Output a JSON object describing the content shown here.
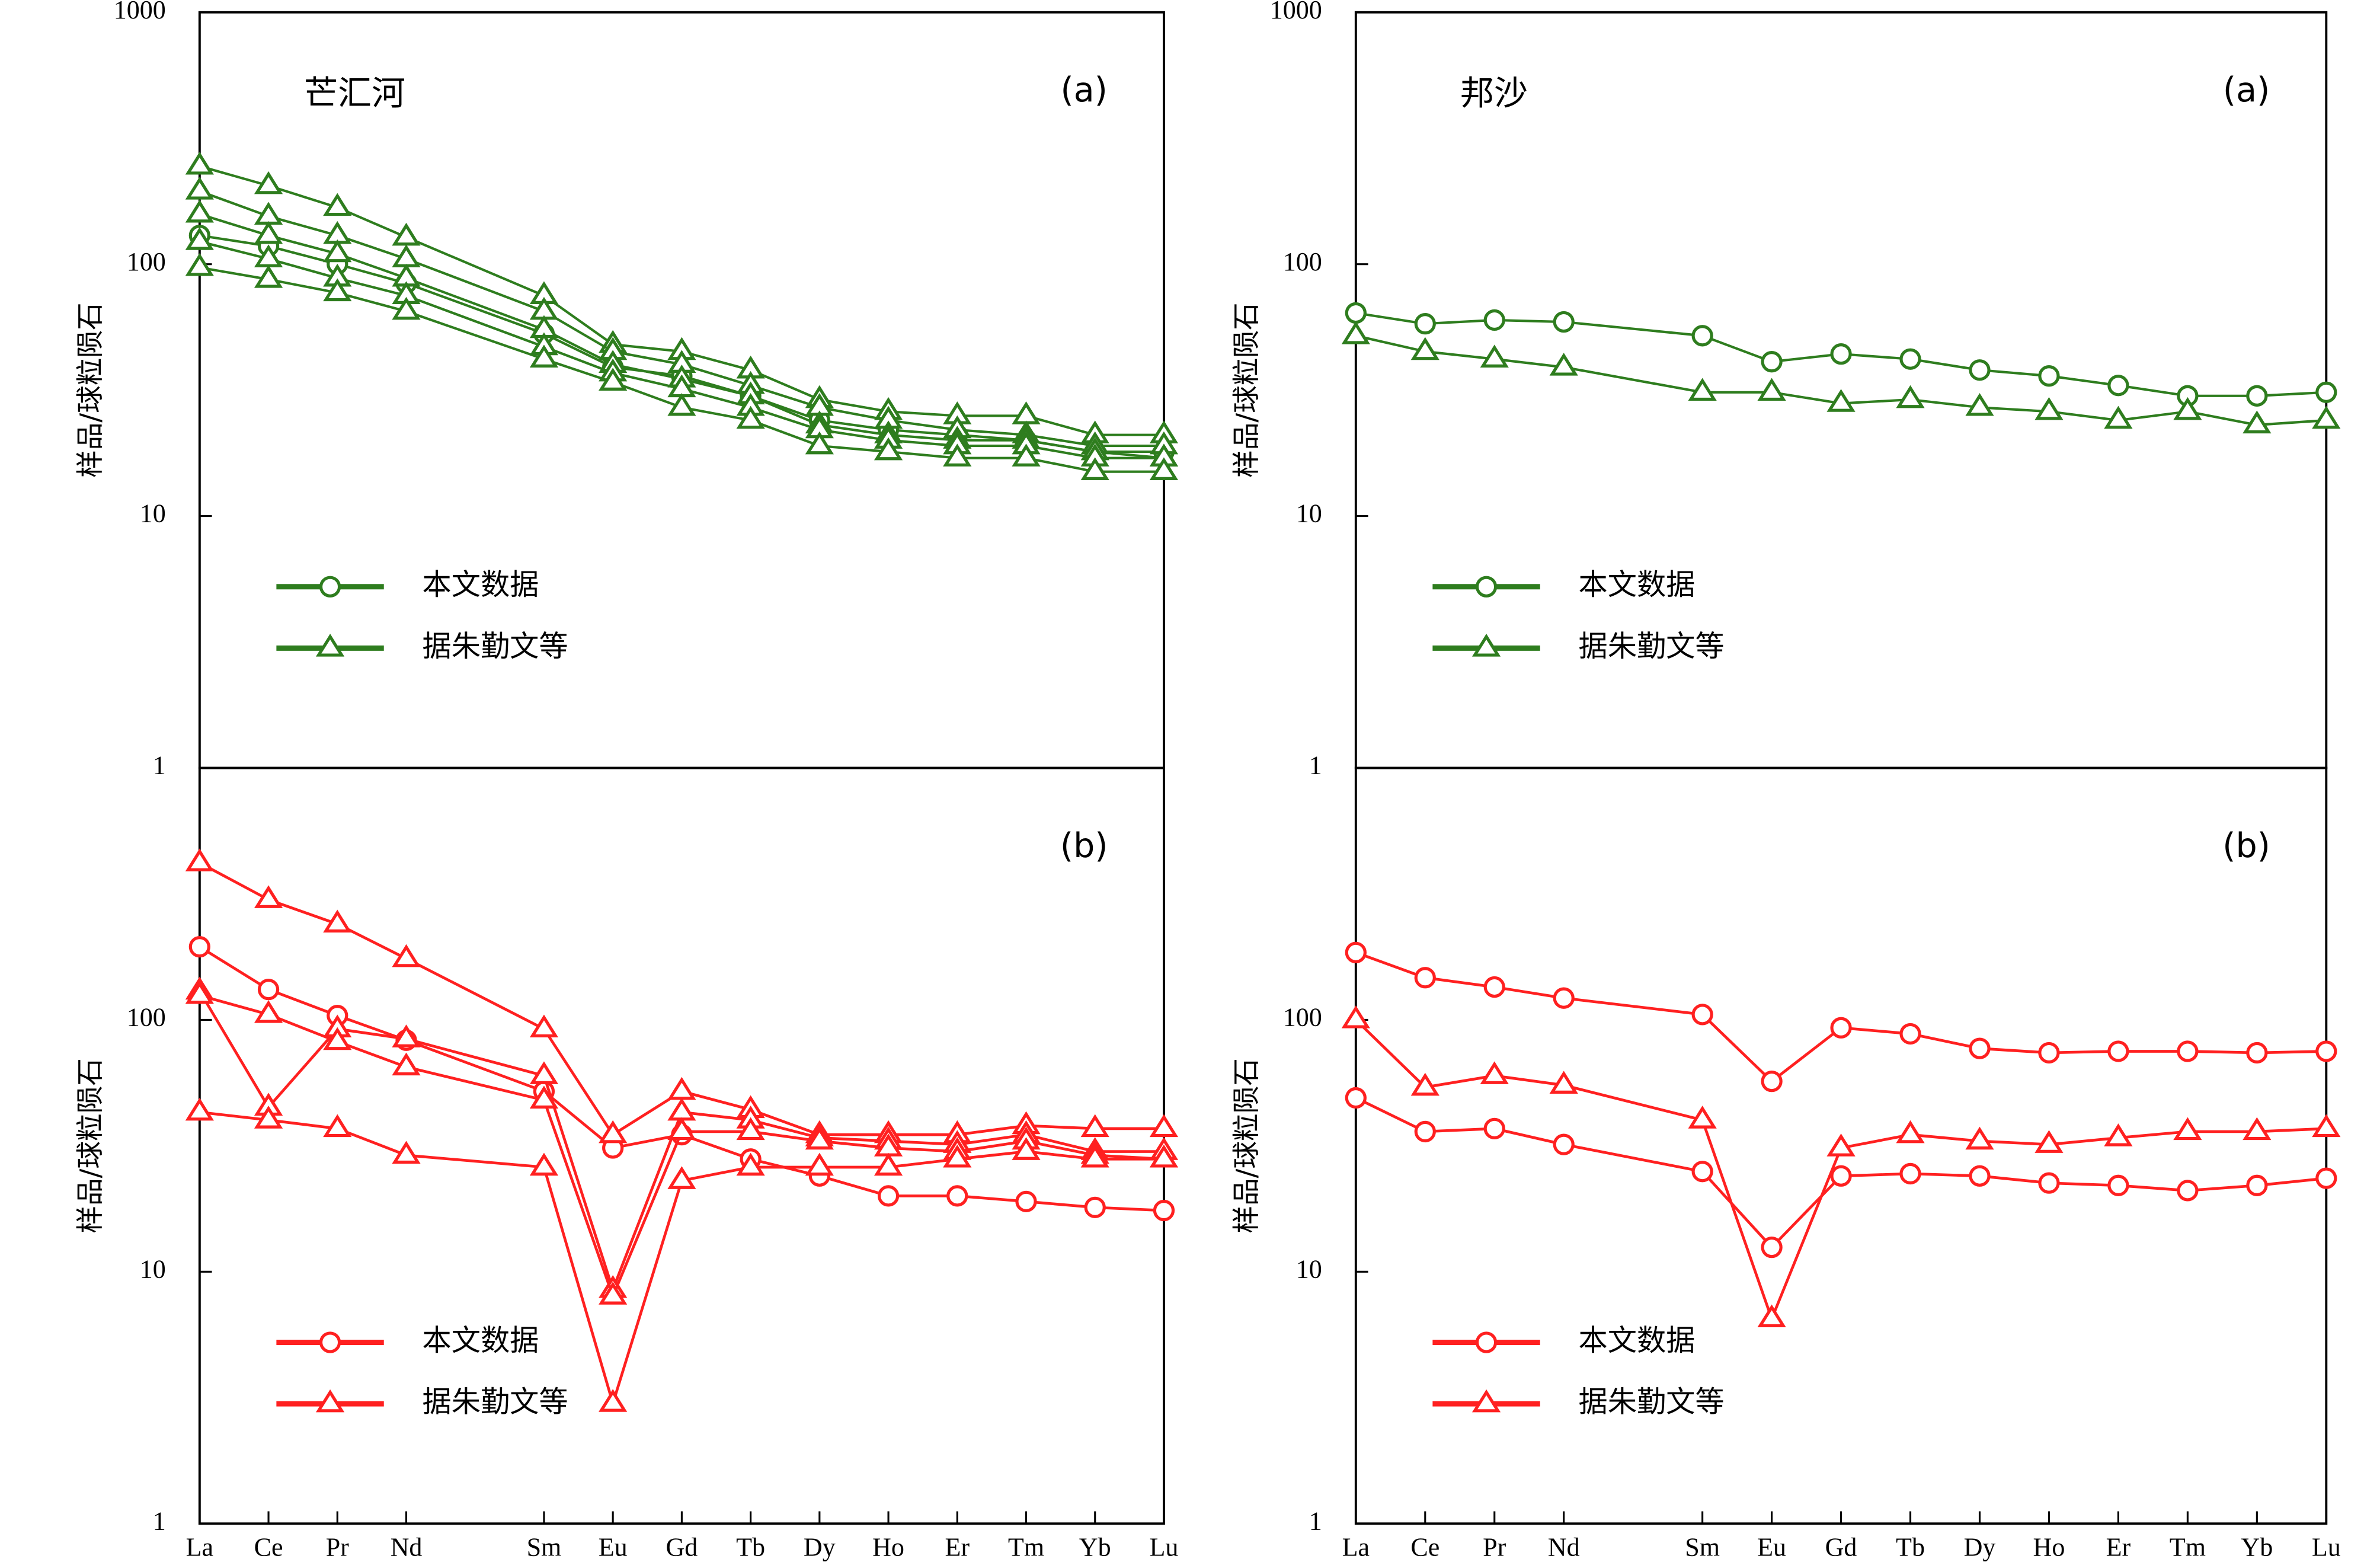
{
  "chart_data": [
    {
      "type": "line",
      "title": "芒汇河",
      "panel_label": "(a)",
      "ylabel": "样品/球粒陨石",
      "x": [
        1,
        2,
        3,
        4,
        6,
        7,
        8,
        9,
        10,
        11,
        12,
        13,
        14,
        15
      ],
      "xlim": [
        1,
        15
      ],
      "ylim": [
        1,
        1000
      ],
      "yticks": [
        1,
        10,
        100,
        1000
      ],
      "log_scale": true,
      "legend": "lower left",
      "series": [
        {
          "name": "本文数据",
          "color": "#2e7d1e",
          "marker": "circle",
          "samples": [
            [
              130,
              118,
              100,
              84,
              53,
              39,
              36,
              30,
              24,
              22,
              21,
              20,
              18,
              18
            ]
          ]
        },
        {
          "name": "据朱勤文等",
          "color": "#2e7d1e",
          "marker": "triangle",
          "samples": [
            [
              245,
              205,
              168,
              128,
              75,
              48,
              45,
              38,
              29,
              26,
              25,
              25,
              21,
              21
            ],
            [
              195,
              155,
              130,
              105,
              65,
              45,
              40,
              33,
              27,
              24,
              22,
              21,
              19,
              19
            ],
            [
              158,
              130,
              110,
              88,
              55,
              40,
              35,
              30,
              23,
              21,
              20,
              20,
              18,
              17
            ],
            [
              123,
              105,
              88,
              75,
              47,
              37,
              32,
              27,
              22,
              20,
              19,
              19,
              17,
              17
            ],
            [
              97,
              87,
              77,
              65,
              42,
              34,
              27,
              24,
              19,
              18,
              17,
              17,
              15,
              15
            ]
          ]
        }
      ]
    },
    {
      "type": "line",
      "title": "邦沙",
      "panel_label": "(a)",
      "ylabel": "样品/球粒陨石",
      "x": [
        1,
        2,
        3,
        4,
        6,
        7,
        8,
        9,
        10,
        11,
        12,
        13,
        14,
        15
      ],
      "xlim": [
        1,
        15
      ],
      "ylim": [
        1,
        1000
      ],
      "yticks": [
        1,
        10,
        100,
        1000
      ],
      "log_scale": true,
      "legend": "lower left",
      "series": [
        {
          "name": "本文数据",
          "color": "#2e7d1e",
          "marker": "circle",
          "samples": [
            [
              64,
              58,
              60,
              59,
              52,
              41,
              44,
              42,
              38,
              36,
              33,
              30,
              30,
              31
            ]
          ]
        },
        {
          "name": "据朱勤文等",
          "color": "#2e7d1e",
          "marker": "triangle",
          "samples": [
            [
              52,
              45,
              42,
              39,
              31,
              31,
              28,
              29,
              27,
              26,
              24,
              26,
              23,
              24
            ]
          ]
        }
      ]
    },
    {
      "type": "line",
      "panel_label": "(b)",
      "ylabel": "样品/球粒陨石",
      "x": [
        1,
        2,
        3,
        4,
        6,
        7,
        8,
        9,
        10,
        11,
        12,
        13,
        14,
        15
      ],
      "xlim": [
        1,
        15
      ],
      "xticks": [
        {
          "value": 1,
          "label": "La"
        },
        {
          "value": 2,
          "label": "Ce"
        },
        {
          "value": 3,
          "label": "Pr"
        },
        {
          "value": 4,
          "label": "Nd"
        },
        {
          "value": 6,
          "label": "Sm"
        },
        {
          "value": 7,
          "label": "Eu"
        },
        {
          "value": 8,
          "label": "Gd"
        },
        {
          "value": 9,
          "label": "Tb"
        },
        {
          "value": 10,
          "label": "Dy"
        },
        {
          "value": 11,
          "label": "Ho"
        },
        {
          "value": 12,
          "label": "Er"
        },
        {
          "value": 13,
          "label": "Tm"
        },
        {
          "value": 14,
          "label": "Yb"
        },
        {
          "value": 15,
          "label": "Lu"
        }
      ],
      "ylim": [
        1,
        1000
      ],
      "yticks": [
        1,
        10,
        100
      ],
      "log_scale": true,
      "legend": "lower left",
      "series": [
        {
          "name": "本文数据",
          "color": "#ff2020",
          "marker": "circle",
          "samples": [
            [
              195,
              132,
              104,
              83,
              52,
              31,
              35,
              28,
              24,
              20,
              20,
              19,
              18,
              17.5
            ]
          ]
        },
        {
          "name": "据朱勤文等",
          "color": "#ff2020",
          "marker": "triangle",
          "samples": [
            [
              420,
              300,
              240,
              175,
              92,
              35,
              52,
              44,
              35,
              35,
              35,
              38,
              37,
              37
            ],
            [
              130,
              45,
              92,
              84,
              60,
              8.5,
              43,
              40,
              34,
              33,
              32,
              35,
              30,
              30
            ],
            [
              125,
              105,
              82,
              65,
              48,
              8,
              36,
              36,
              33,
              31,
              30,
              33,
              29,
              28
            ],
            [
              43,
              40,
              37,
              29,
              26,
              3,
              23,
              26,
              26,
              26,
              28,
              30,
              28,
              28
            ]
          ]
        }
      ]
    },
    {
      "type": "line",
      "panel_label": "(b)",
      "ylabel": "样品/球粒陨石",
      "x": [
        1,
        2,
        3,
        4,
        6,
        7,
        8,
        9,
        10,
        11,
        12,
        13,
        14,
        15
      ],
      "xlim": [
        1,
        15
      ],
      "xticks": [
        {
          "value": 1,
          "label": "La"
        },
        {
          "value": 2,
          "label": "Ce"
        },
        {
          "value": 3,
          "label": "Pr"
        },
        {
          "value": 4,
          "label": "Nd"
        },
        {
          "value": 6,
          "label": "Sm"
        },
        {
          "value": 7,
          "label": "Eu"
        },
        {
          "value": 8,
          "label": "Gd"
        },
        {
          "value": 9,
          "label": "Tb"
        },
        {
          "value": 10,
          "label": "Dy"
        },
        {
          "value": 11,
          "label": "Ho"
        },
        {
          "value": 12,
          "label": "Er"
        },
        {
          "value": 13,
          "label": "Tm"
        },
        {
          "value": 14,
          "label": "Yb"
        },
        {
          "value": 15,
          "label": "Lu"
        }
      ],
      "ylim": [
        1,
        1000
      ],
      "yticks": [
        1,
        10,
        100
      ],
      "log_scale": true,
      "legend": "lower left",
      "series": [
        {
          "name": "本文数据",
          "color": "#ff2020",
          "marker": "circle",
          "samples": [
            [
              185,
              147,
              135,
              122,
              105,
              57,
              93,
              88,
              77,
              74,
              75,
              75,
              74,
              75
            ],
            [
              49,
              36,
              37,
              32,
              25,
              12.5,
              24,
              24.5,
              24,
              22.5,
              22,
              21,
              22,
              23.5
            ]
          ]
        },
        {
          "name": "据朱勤文等",
          "color": "#ff2020",
          "marker": "triangle",
          "samples": [
            [
              100,
              54,
              60,
              55,
              40,
              6.5,
              31,
              35,
              33,
              32,
              34,
              36,
              36,
              37
            ]
          ]
        }
      ]
    }
  ]
}
